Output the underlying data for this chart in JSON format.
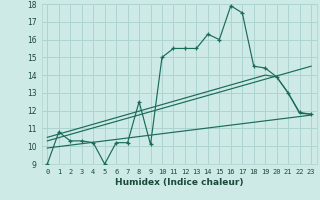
{
  "xlabel": "Humidex (Indice chaleur)",
  "bg_color": "#cdeae6",
  "grid_color": "#acd4d0",
  "line_color": "#1a6b5a",
  "xlim": [
    -0.5,
    23.5
  ],
  "ylim": [
    9,
    18
  ],
  "xticks": [
    0,
    1,
    2,
    3,
    4,
    5,
    6,
    7,
    8,
    9,
    10,
    11,
    12,
    13,
    14,
    15,
    16,
    17,
    18,
    19,
    20,
    21,
    22,
    23
  ],
  "yticks": [
    9,
    10,
    11,
    12,
    13,
    14,
    15,
    16,
    17,
    18
  ],
  "series1_x": [
    0,
    1,
    2,
    3,
    4,
    5,
    6,
    7,
    8,
    9,
    10,
    11,
    12,
    13,
    14,
    15,
    16,
    17,
    18,
    19,
    20,
    21,
    22,
    23
  ],
  "series1_y": [
    9.0,
    10.8,
    10.3,
    10.3,
    10.2,
    9.0,
    10.2,
    10.2,
    12.5,
    10.1,
    15.0,
    15.5,
    15.5,
    15.5,
    16.3,
    16.0,
    17.9,
    17.5,
    14.5,
    14.4,
    13.9,
    13.0,
    11.9,
    11.8
  ],
  "series2_x": [
    0,
    19,
    20,
    21,
    22,
    23
  ],
  "series2_y": [
    10.5,
    14.0,
    13.9,
    13.0,
    11.85,
    11.8
  ],
  "series3_x": [
    0,
    23
  ],
  "series3_y": [
    10.3,
    14.5
  ],
  "series4_x": [
    0,
    23
  ],
  "series4_y": [
    9.9,
    11.75
  ]
}
